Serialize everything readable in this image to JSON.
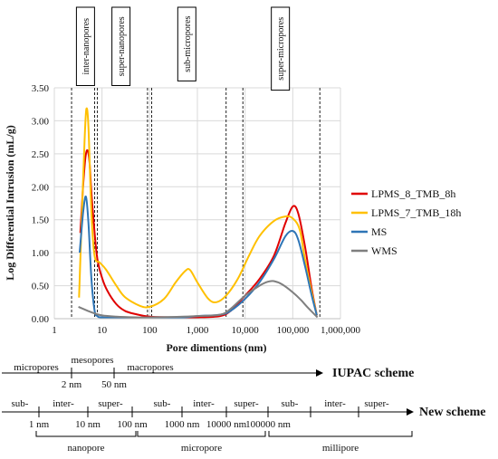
{
  "chart_data": {
    "type": "line",
    "xlabel": "Pore dimentions (nm)",
    "ylabel": "Log Differential Intrusion (mL/g)",
    "x_scale": "log",
    "xlim": [
      1,
      1000000
    ],
    "ylim": [
      0,
      3.5
    ],
    "x_ticks": [
      "1",
      "10",
      "100",
      "1,000",
      "10,000",
      "100,000",
      "1,000,000"
    ],
    "y_ticks": [
      "0.00",
      "0.50",
      "1.00",
      "1.50",
      "2.00",
      "2.50",
      "3.00",
      "3.50"
    ],
    "grid": true,
    "legend_position": "right",
    "series": [
      {
        "name": "LPMS_8_TMB_8h",
        "color": "#e00000",
        "points": [
          [
            3.5,
            1.3
          ],
          [
            4,
            2.0
          ],
          [
            4.5,
            2.45
          ],
          [
            5,
            2.55
          ],
          [
            5.5,
            2.35
          ],
          [
            6,
            1.9
          ],
          [
            7,
            1.3
          ],
          [
            8,
            0.9
          ],
          [
            10,
            0.62
          ],
          [
            13,
            0.42
          ],
          [
            20,
            0.22
          ],
          [
            30,
            0.12
          ],
          [
            50,
            0.07
          ],
          [
            100,
            0.03
          ],
          [
            300,
            0.02
          ],
          [
            1000,
            0.02
          ],
          [
            3000,
            0.04
          ],
          [
            5000,
            0.12
          ],
          [
            10000,
            0.35
          ],
          [
            20000,
            0.6
          ],
          [
            40000,
            0.95
          ],
          [
            70000,
            1.45
          ],
          [
            100000,
            1.7
          ],
          [
            130000,
            1.6
          ],
          [
            180000,
            1.1
          ],
          [
            250000,
            0.45
          ],
          [
            320000,
            0.05
          ]
        ]
      },
      {
        "name": "LPMS_7_TMB_18h",
        "color": "#ffc000",
        "points": [
          [
            3.3,
            0.32
          ],
          [
            3.8,
            1.6
          ],
          [
            4.3,
            2.7
          ],
          [
            4.7,
            3.18
          ],
          [
            5.2,
            2.9
          ],
          [
            6,
            1.6
          ],
          [
            7,
            0.95
          ],
          [
            9,
            0.85
          ],
          [
            12,
            0.75
          ],
          [
            20,
            0.5
          ],
          [
            30,
            0.33
          ],
          [
            60,
            0.2
          ],
          [
            100,
            0.18
          ],
          [
            200,
            0.3
          ],
          [
            350,
            0.55
          ],
          [
            550,
            0.72
          ],
          [
            700,
            0.74
          ],
          [
            1000,
            0.55
          ],
          [
            1700,
            0.3
          ],
          [
            2500,
            0.25
          ],
          [
            4000,
            0.35
          ],
          [
            7000,
            0.6
          ],
          [
            12000,
            0.95
          ],
          [
            20000,
            1.25
          ],
          [
            40000,
            1.48
          ],
          [
            70000,
            1.55
          ],
          [
            100000,
            1.52
          ],
          [
            140000,
            1.35
          ],
          [
            180000,
            0.9
          ],
          [
            250000,
            0.4
          ],
          [
            320000,
            0.05
          ]
        ]
      },
      {
        "name": "MS",
        "color": "#2e75b6",
        "points": [
          [
            3.4,
            1.0
          ],
          [
            4,
            1.6
          ],
          [
            4.6,
            1.85
          ],
          [
            5.2,
            1.45
          ],
          [
            6,
            0.6
          ],
          [
            7,
            0.12
          ],
          [
            8,
            0.04
          ],
          [
            10,
            0.02
          ],
          [
            30,
            0.01
          ],
          [
            100,
            0.01
          ],
          [
            500,
            0.02
          ],
          [
            1000,
            0.04
          ],
          [
            3000,
            0.06
          ],
          [
            5000,
            0.12
          ],
          [
            10000,
            0.3
          ],
          [
            20000,
            0.55
          ],
          [
            40000,
            0.9
          ],
          [
            70000,
            1.25
          ],
          [
            100000,
            1.33
          ],
          [
            130000,
            1.2
          ],
          [
            180000,
            0.8
          ],
          [
            250000,
            0.35
          ],
          [
            320000,
            0.05
          ]
        ]
      },
      {
        "name": "WMS",
        "color": "#7f7f7f",
        "points": [
          [
            3.2,
            0.18
          ],
          [
            5,
            0.12
          ],
          [
            7,
            0.08
          ],
          [
            10,
            0.05
          ],
          [
            20,
            0.03
          ],
          [
            50,
            0.02
          ],
          [
            100,
            0.02
          ],
          [
            500,
            0.03
          ],
          [
            1000,
            0.04
          ],
          [
            3000,
            0.06
          ],
          [
            5000,
            0.15
          ],
          [
            10000,
            0.35
          ],
          [
            20000,
            0.5
          ],
          [
            30000,
            0.56
          ],
          [
            40000,
            0.57
          ],
          [
            60000,
            0.52
          ],
          [
            100000,
            0.4
          ],
          [
            150000,
            0.28
          ],
          [
            200000,
            0.18
          ],
          [
            300000,
            0.05
          ],
          [
            330000,
            0.02
          ]
        ]
      }
    ],
    "region_boundaries": [
      2.3,
      7,
      8,
      90,
      110,
      4000,
      9000,
      370000
    ],
    "region_labels": [
      {
        "text": "inter-nanopores",
        "x": 4.5
      },
      {
        "text": "super-nanopores",
        "x": 25
      },
      {
        "text": "sub-micropores",
        "x": 600
      },
      {
        "text": "super-micropores",
        "x": 55000
      }
    ]
  },
  "iupac_scheme": {
    "name": "IUPAC scheme",
    "classes": [
      "micropores",
      "mesopores",
      "macropores"
    ],
    "boundaries": [
      "2 nm",
      "50 nm"
    ]
  },
  "new_scheme": {
    "name": "New scheme",
    "classes": [
      "sub-",
      "inter-",
      "super-",
      "sub-",
      "inter-",
      "super-",
      "sub-",
      "inter-",
      "super-"
    ],
    "boundaries": [
      "1 nm",
      "10 nm",
      "100 nm",
      "1000 nm",
      "10000 nm",
      "100000 nm"
    ],
    "groups": [
      "nanopore",
      "micropore",
      "millipore"
    ]
  }
}
